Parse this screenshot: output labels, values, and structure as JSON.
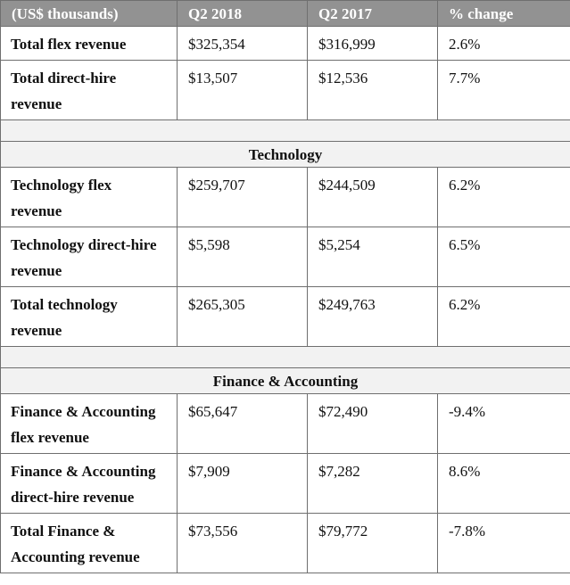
{
  "header": {
    "col_label": "(US$ thousands)",
    "col_q2_2018": "Q2 2018",
    "col_q2_2017": "Q2 2017",
    "col_change": "% change"
  },
  "rows": [
    {
      "label": "Total flex revenue",
      "q2_2018": "$325,354",
      "q2_2017": "$316,999",
      "change": "2.6%"
    },
    {
      "label": "Total direct-hire revenue",
      "q2_2018": "$13,507",
      "q2_2017": "$12,536",
      "change": "7.7%"
    },
    {
      "label": "Technology flex revenue",
      "q2_2018": "$259,707",
      "q2_2017": "$244,509",
      "change": "6.2%"
    },
    {
      "label": "Technology direct-hire revenue",
      "q2_2018": "$5,598",
      "q2_2017": "$5,254",
      "change": "6.5%"
    },
    {
      "label": "Total technology revenue",
      "q2_2018": "$265,305",
      "q2_2017": "$249,763",
      "change": "6.2%"
    },
    {
      "label": "Finance & Accounting flex revenue",
      "q2_2018": "$65,647",
      "q2_2017": "$72,490",
      "change": "-9.4%"
    },
    {
      "label": "Finance & Accounting direct-hire revenue",
      "q2_2018": "$7,909",
      "q2_2017": "$7,282",
      "change": "8.6%"
    },
    {
      "label": "Total Finance & Accounting revenue",
      "q2_2018": "$73,556",
      "q2_2017": "$79,772",
      "change": "-7.8%"
    }
  ],
  "sections": {
    "technology": "Technology",
    "finance": "Finance & Accounting"
  }
}
